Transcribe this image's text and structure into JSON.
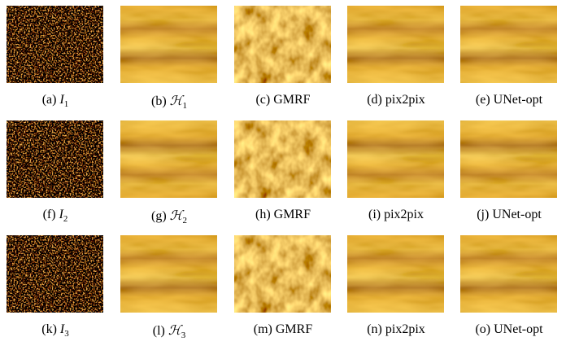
{
  "figure": {
    "rows": [
      [
        {
          "tag": "(a)",
          "label": "I",
          "sub": "1"
        },
        {
          "tag": "(b)",
          "label": "ℋ",
          "sub": "1"
        },
        {
          "tag": "(c)",
          "label": "GMRF"
        },
        {
          "tag": "(d)",
          "label": "pix2pix"
        },
        {
          "tag": "(e)",
          "label": "UNet-opt"
        }
      ],
      [
        {
          "tag": "(f)",
          "label": "I",
          "sub": "2"
        },
        {
          "tag": "(g)",
          "label": "ℋ",
          "sub": "2"
        },
        {
          "tag": "(h)",
          "label": "GMRF"
        },
        {
          "tag": "(i)",
          "label": "pix2pix"
        },
        {
          "tag": "(j)",
          "label": "UNet-opt"
        }
      ],
      [
        {
          "tag": "(k)",
          "label": "I",
          "sub": "3"
        },
        {
          "tag": "(l)",
          "label": "ℋ",
          "sub": "3"
        },
        {
          "tag": "(m)",
          "label": "GMRF"
        },
        {
          "tag": "(n)",
          "label": "pix2pix"
        },
        {
          "tag": "(o)",
          "label": "UNet-opt"
        }
      ]
    ]
  }
}
